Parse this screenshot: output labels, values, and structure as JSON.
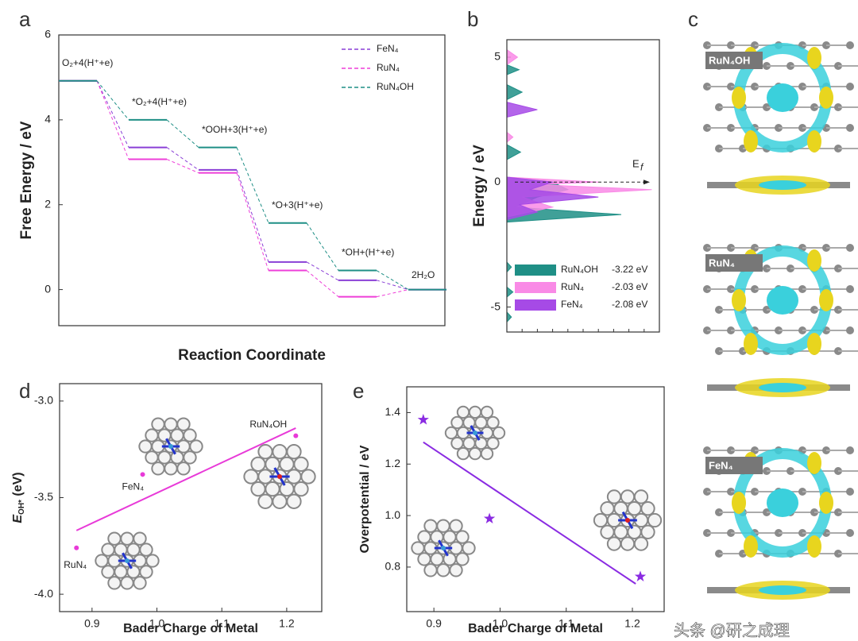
{
  "chart_data": [
    {
      "type": "step",
      "panel": "a",
      "ylabel": "Free Energy / eV",
      "xlabel": "Reaction Coordinate",
      "steps": [
        "O₂+4(H⁺+e)",
        "*O₂+4(H⁺+e)",
        "*OOH+3(H⁺+e)",
        "*O+3(H⁺+e)",
        "*OH+(H⁺+e)",
        "2H₂O"
      ],
      "ylim": [
        -0.85,
        6
      ],
      "yticks": [
        0,
        2,
        4,
        6
      ],
      "series": [
        {
          "name": "FeN₄",
          "color": "#8a3fd6",
          "values": [
            4.92,
            3.35,
            2.82,
            0.65,
            0.22,
            0
          ]
        },
        {
          "name": "RuN₄",
          "color": "#ee3fd8",
          "values": [
            4.92,
            3.07,
            2.75,
            0.45,
            -0.17,
            0
          ]
        },
        {
          "name": "RuN₄OH",
          "color": "#1f8f86",
          "values": [
            4.92,
            4.0,
            3.35,
            1.57,
            0.45,
            0
          ]
        }
      ]
    },
    {
      "type": "area",
      "panel": "b",
      "ylabel": "Energy / eV",
      "fermi_label": "E",
      "fermi_sub": "f",
      "ylim": [
        -6.0,
        5.7
      ],
      "yticks": [
        -5,
        0,
        5
      ],
      "xlim": [
        0,
        10
      ],
      "series": [
        {
          "name": "RuN₄OH",
          "color": "#1f8f86",
          "value": -3.22,
          "value_label": "-3.22 eV",
          "energy": [
            -5.6,
            -5.4,
            -5.2,
            -4.6,
            -4.4,
            -4.2,
            -3.6,
            -3.4,
            -3.2,
            -1.6,
            -1.3,
            -1.0,
            -0.6,
            -0.3,
            0.0,
            0.2,
            0.9,
            1.2,
            1.5,
            3.3,
            3.6,
            3.9,
            4.3,
            4.5,
            4.7
          ],
          "dos": [
            0,
            0.3,
            0,
            0,
            0.4,
            0,
            0,
            0.3,
            0,
            0,
            7.5,
            0.5,
            2.0,
            4.0,
            3.0,
            0,
            0,
            0.9,
            0,
            0,
            1.0,
            0,
            0,
            0.8,
            0
          ]
        },
        {
          "name": "RuN₄",
          "color": "#f98ae6",
          "value": -2.03,
          "value_label": "-2.03 eV",
          "energy": [
            -1.4,
            -1.0,
            -0.6,
            -0.3,
            -0.1,
            0.0,
            0.2,
            1.6,
            1.8,
            2.0,
            4.7,
            5.0,
            5.3
          ],
          "dos": [
            0,
            3.0,
            1.0,
            9.5,
            2.0,
            6.0,
            0,
            0,
            0.4,
            0,
            0,
            0.7,
            0
          ]
        },
        {
          "name": "FeN₄",
          "color": "#a64ae6",
          "value": -2.08,
          "value_label": "-2.08 eV",
          "energy": [
            -1.5,
            -1.2,
            -0.9,
            -0.6,
            -0.3,
            0.0,
            0.2,
            2.6,
            2.9,
            3.2
          ],
          "dos": [
            0,
            2.0,
            0.8,
            6.0,
            1.5,
            3.0,
            0,
            0,
            2.0,
            0
          ]
        }
      ]
    },
    {
      "type": "image",
      "panel": "c",
      "labels": [
        "RuN₄OH",
        "RuN₄",
        "FeN₄"
      ]
    },
    {
      "type": "scatter",
      "panel": "d",
      "ylabel": "E",
      "ylabel_sub": "OH*",
      "ylabel_unit": " (eV)",
      "xlabel": "Bader Charge of Metal",
      "color": "#e83ad8",
      "marker": "circle",
      "x": [
        0.876,
        0.978,
        1.214
      ],
      "values": [
        -3.76,
        -3.38,
        -3.18
      ],
      "point_labels": [
        "RuN₄",
        "FeN₄",
        "RuN₄OH"
      ],
      "fit": {
        "x": [
          0.876,
          1.214
        ],
        "y": [
          -3.67,
          -3.14
        ]
      },
      "xlim": [
        0.85,
        1.254
      ],
      "xticks": [
        0.9,
        {
          "value": 1.0,
          "label": "1.0"
        },
        1.1,
        1.2
      ],
      "ylim": [
        -4.09,
        -2.91
      ],
      "yticks": [
        {
          "value": -3.0,
          "label": "-3.0"
        },
        -3.5,
        {
          "value": -4.0,
          "label": "-4.0"
        }
      ]
    },
    {
      "type": "scatter",
      "panel": "e",
      "ylabel": "Overpotential / eV",
      "xlabel": "Bader Charge of Metal",
      "color": "#8a2be2",
      "marker": "star",
      "x": [
        0.884,
        0.984,
        1.212
      ],
      "values": [
        1.372,
        0.988,
        0.763
      ],
      "fit": {
        "x": [
          0.884,
          1.205
        ],
        "y": [
          1.285,
          0.735
        ]
      },
      "xlim": [
        0.859,
        1.248
      ],
      "xticks": [
        0.9,
        {
          "value": 1.0,
          "label": "1.0"
        },
        1.1,
        1.2
      ],
      "ylim": [
        0.627,
        1.5
      ],
      "yticks": [
        0.8,
        {
          "value": 1.0,
          "label": "1.0"
        },
        1.2,
        1.4
      ]
    }
  ],
  "watermark": "头条 @研之成理"
}
